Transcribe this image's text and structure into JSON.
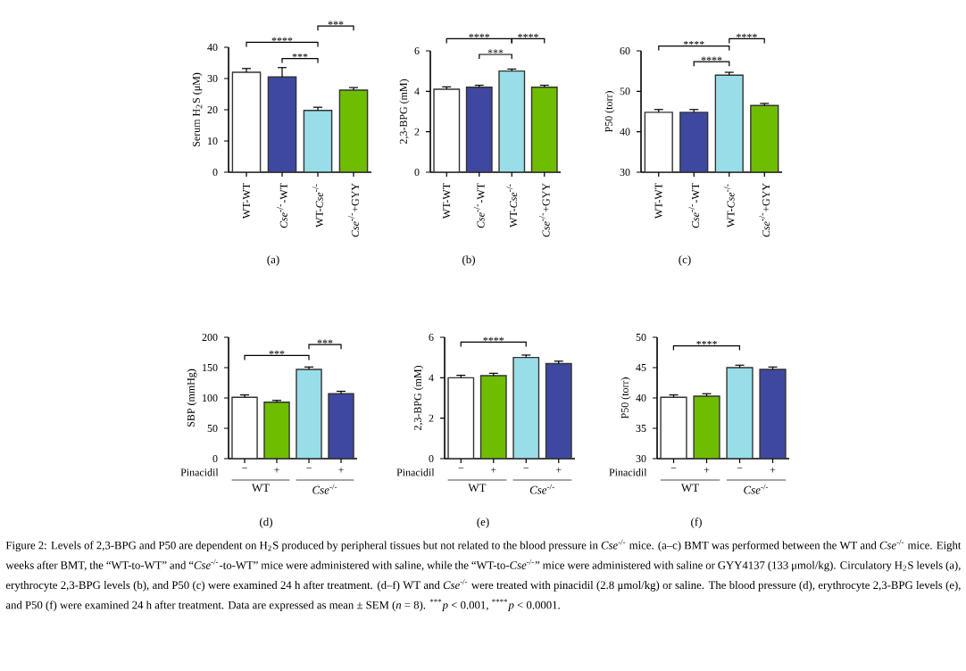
{
  "chart_data": [
    {
      "type": "bar",
      "ylabel": "Serum H$_{2}$S (μM)",
      "categories": [
        "WT-WT",
        "*Cse*$^{-/-}$-WT",
        "WT-*Cse*$^{-/-}$",
        "*Cse*$^{-/-}$+GYY"
      ],
      "values": [
        32,
        30.5,
        19.8,
        26.3
      ],
      "errors": [
        1.2,
        3,
        1,
        0.8
      ],
      "colors": [
        "#ffffff",
        "#3f48a0",
        "#99dde8",
        "#6fbd00"
      ],
      "ylim": [
        0,
        40
      ],
      "yticks": [
        0,
        10,
        20,
        30,
        40
      ],
      "annotations": [
        "****",
        "***",
        "***",
        "(a)"
      ]
    },
    {
      "type": "bar",
      "ylabel": "2,3-BPG (mM)",
      "categories": [
        "WT-WT",
        "*Cse*$^{-/-}$-WT",
        "WT-*Cse*$^{-/-}$",
        "*Cse*$^{-/-}$+GYY"
      ],
      "values": [
        4.1,
        4.2,
        5.0,
        4.2
      ],
      "errors": [
        0.12,
        0.1,
        0.1,
        0.1
      ],
      "colors": [
        "#ffffff",
        "#3f48a0",
        "#99dde8",
        "#6fbd00"
      ],
      "ylim": [
        0,
        6
      ],
      "yticks": [
        0,
        2,
        4,
        6
      ],
      "annotations": [
        "****",
        "***",
        "****",
        "(b)"
      ]
    },
    {
      "type": "bar",
      "ylabel": "P50 (torr)",
      "categories": [
        "WT-WT",
        "*Cse*$^{-/-}$-WT",
        "WT-*Cse*$^{-/-}$",
        "*Cse*$^{-/-}$+GYY"
      ],
      "values": [
        44.8,
        44.8,
        54,
        46.5
      ],
      "errors": [
        0.7,
        0.7,
        0.7,
        0.5
      ],
      "colors": [
        "#ffffff",
        "#3f48a0",
        "#99dde8",
        "#6fbd00"
      ],
      "ylim": [
        30,
        60
      ],
      "yticks": [
        30,
        40,
        50,
        60
      ],
      "annotations": [
        "****",
        "****",
        "****",
        "(c)"
      ]
    },
    {
      "type": "bar",
      "ylabel": "SBP (mmHg)",
      "xlabel": "Pinacidil",
      "categories": [
        "−",
        "+",
        "−",
        "+"
      ],
      "values": [
        101,
        93,
        147,
        107
      ],
      "errors": [
        4,
        3,
        4,
        4
      ],
      "colors": [
        "#ffffff",
        "#6fbd00",
        "#99dde8",
        "#3f48a0"
      ],
      "ylim": [
        0,
        200
      ],
      "yticks": [
        0,
        50,
        100,
        150,
        200
      ],
      "annotations": [
        "***",
        "***",
        "WT",
        "*Cse*$^{-/-}$",
        "(d)"
      ]
    },
    {
      "type": "bar",
      "ylabel": "2,3-BPG (mM)",
      "xlabel": "Pinacidil",
      "categories": [
        "−",
        "+",
        "−",
        "+"
      ],
      "values": [
        4.0,
        4.1,
        5.0,
        4.7
      ],
      "errors": [
        0.12,
        0.12,
        0.12,
        0.12
      ],
      "colors": [
        "#ffffff",
        "#6fbd00",
        "#99dde8",
        "#3f48a0"
      ],
      "ylim": [
        0,
        6
      ],
      "yticks": [
        0,
        2,
        4,
        6
      ],
      "annotations": [
        "****",
        "WT",
        "*Cse*$^{-/-}$",
        "(e)"
      ]
    },
    {
      "type": "bar",
      "ylabel": "P50 (torr)",
      "xlabel": "Pinacidil",
      "categories": [
        "−",
        "+",
        "−",
        "+"
      ],
      "values": [
        40.1,
        40.3,
        45,
        44.7
      ],
      "errors": [
        0.4,
        0.4,
        0.4,
        0.4
      ],
      "colors": [
        "#ffffff",
        "#6fbd00",
        "#99dde8",
        "#3f48a0"
      ],
      "ylim": [
        30,
        50
      ],
      "yticks": [
        30,
        35,
        40,
        45,
        50
      ],
      "annotations": [
        "****",
        "WT",
        "*Cse*$^{-/-}$",
        "(f)",
        "Figure 2: Levels of 2,3-BPG and P50 are dependent on H$_{2}$S produced by peripheral tissues but not related to the blood pressure in *Cse*$^{-/-}$ mice. (a–c) BMT was performed between the WT and *Cse*$^{-/-}$ mice. Eight weeks after BMT, the “WT-to-WT” and “*Cse*$^{-/-}$-to-WT” mice were administered with saline, while the “WT-to-*Cse*$^{-/-}$” mice were administered with saline or GYY4137 (133 μmol/kg). Circulatory H$_{2}$S levels (a), erythrocyte 2,3-BPG levels (b), and P50 (c) were examined 24 h after treatment. (d–f) WT and *Cse*$^{-/-}$ were treated with pinacidil (2.8 μmol/kg) or saline. The blood pressure (d), erythrocyte 2,3-BPG levels (e), and P50 (f) were examined 24 h after treatment. Data are expressed as mean ± SEM (*n* = 8). $^{***}$*p* < 0.001, $^{****}$*p* < 0.0001."
      ]
    }
  ]
}
